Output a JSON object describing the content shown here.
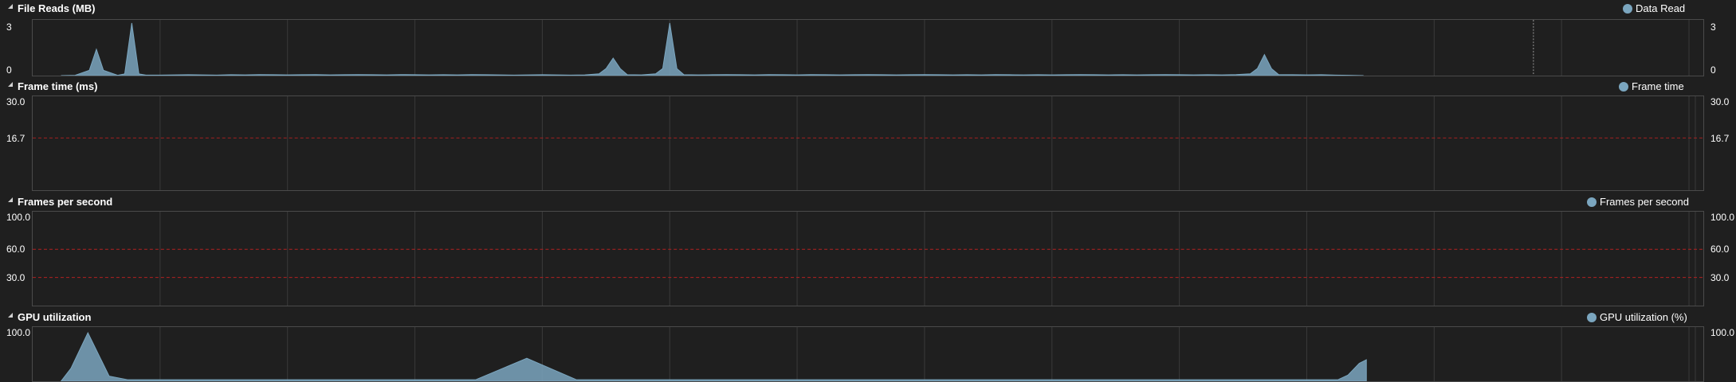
{
  "colors": {
    "background": "#1f1f1f",
    "series": "#7ba6bf",
    "grid": "#3a3a3a",
    "threshold": "#b32020",
    "marker": "#9a9a9a"
  },
  "icons": {
    "collapse": "triangle-collapse-icon",
    "legend": "circle-legend-icon"
  },
  "chart_data": [
    {
      "type": "area",
      "title": "File Reads (MB)",
      "legend": "Data Read",
      "yticks": [
        "3",
        "0"
      ],
      "ylim": [
        0,
        3
      ],
      "x": [
        0,
        1,
        2,
        2.5,
        3,
        4,
        4.5,
        5,
        5.5,
        6,
        7,
        8,
        9,
        10,
        11,
        12,
        13,
        14,
        15,
        16,
        17,
        18,
        19,
        20,
        21,
        22,
        23,
        24,
        25,
        26,
        27,
        28,
        29,
        30,
        31,
        32,
        33,
        34,
        35,
        36,
        37,
        38,
        38.5,
        39,
        39.5,
        40,
        41,
        42,
        42.5,
        43,
        43.5,
        44,
        45,
        46,
        47,
        48,
        49,
        50,
        51,
        52,
        53,
        54,
        55,
        56,
        57,
        58,
        59,
        60,
        61,
        62,
        63,
        64,
        65,
        66,
        67,
        68,
        69,
        70,
        71,
        72,
        73,
        74,
        75,
        76,
        77,
        78,
        79,
        80,
        81,
        82,
        83,
        84,
        84.5,
        85,
        85.5,
        86,
        87,
        88,
        89,
        90,
        91,
        92
      ],
      "values": [
        0,
        0.02,
        0.3,
        1.5,
        0.3,
        0.02,
        0.1,
        3.0,
        0.1,
        0.03,
        0.03,
        0.04,
        0.05,
        0.04,
        0.03,
        0.05,
        0.04,
        0.06,
        0.05,
        0.04,
        0.05,
        0.06,
        0.04,
        0.05,
        0.06,
        0.05,
        0.04,
        0.06,
        0.05,
        0.04,
        0.05,
        0.04,
        0.06,
        0.05,
        0.04,
        0.03,
        0.04,
        0.05,
        0.04,
        0.03,
        0.04,
        0.1,
        0.4,
        1.0,
        0.4,
        0.05,
        0.04,
        0.1,
        0.4,
        3.0,
        0.4,
        0.05,
        0.04,
        0.05,
        0.06,
        0.05,
        0.04,
        0.06,
        0.05,
        0.04,
        0.06,
        0.05,
        0.04,
        0.05,
        0.06,
        0.05,
        0.04,
        0.05,
        0.06,
        0.05,
        0.04,
        0.05,
        0.04,
        0.06,
        0.05,
        0.04,
        0.05,
        0.04,
        0.05,
        0.06,
        0.05,
        0.04,
        0.05,
        0.04,
        0.05,
        0.06,
        0.05,
        0.04,
        0.05,
        0.04,
        0.06,
        0.1,
        0.4,
        1.2,
        0.4,
        0.06,
        0.05,
        0.04,
        0.05,
        0.03,
        0.02,
        0
      ],
      "xlim": [
        -2,
        116
      ],
      "marker_x": 104,
      "grid": true
    },
    {
      "type": "line",
      "title": "Frame time (ms)",
      "legend": "Frame time",
      "yticks": [
        "30.0",
        "16.7"
      ],
      "ylim": [
        0,
        30
      ],
      "threshold": 16.7,
      "grid": true
    },
    {
      "type": "line",
      "title": "Frames per second",
      "legend": "Frames per second",
      "yticks": [
        "100.0",
        "60.0",
        "30.0"
      ],
      "ylim": [
        0,
        100
      ],
      "thresholds": [
        60,
        30
      ],
      "grid": true
    },
    {
      "type": "area",
      "title": "GPU utilization",
      "legend": "GPU utilization (%)",
      "yticks": [
        "100.0"
      ],
      "ylim": [
        0,
        100
      ],
      "x": [
        0,
        0.7,
        1.9,
        3.4,
        4.7,
        10,
        20,
        25,
        29.3,
        32.9,
        36.4,
        40,
        50,
        60,
        70,
        80,
        85,
        90.2,
        90.9,
        91.7,
        92.2
      ],
      "values": [
        0,
        25,
        95,
        10,
        3,
        3,
        3,
        3,
        3,
        45,
        3,
        3,
        3,
        3,
        3,
        3,
        3,
        3,
        12,
        35,
        42
      ],
      "xlim": [
        -2,
        116
      ],
      "x_end": 92.2,
      "grid": true
    }
  ]
}
